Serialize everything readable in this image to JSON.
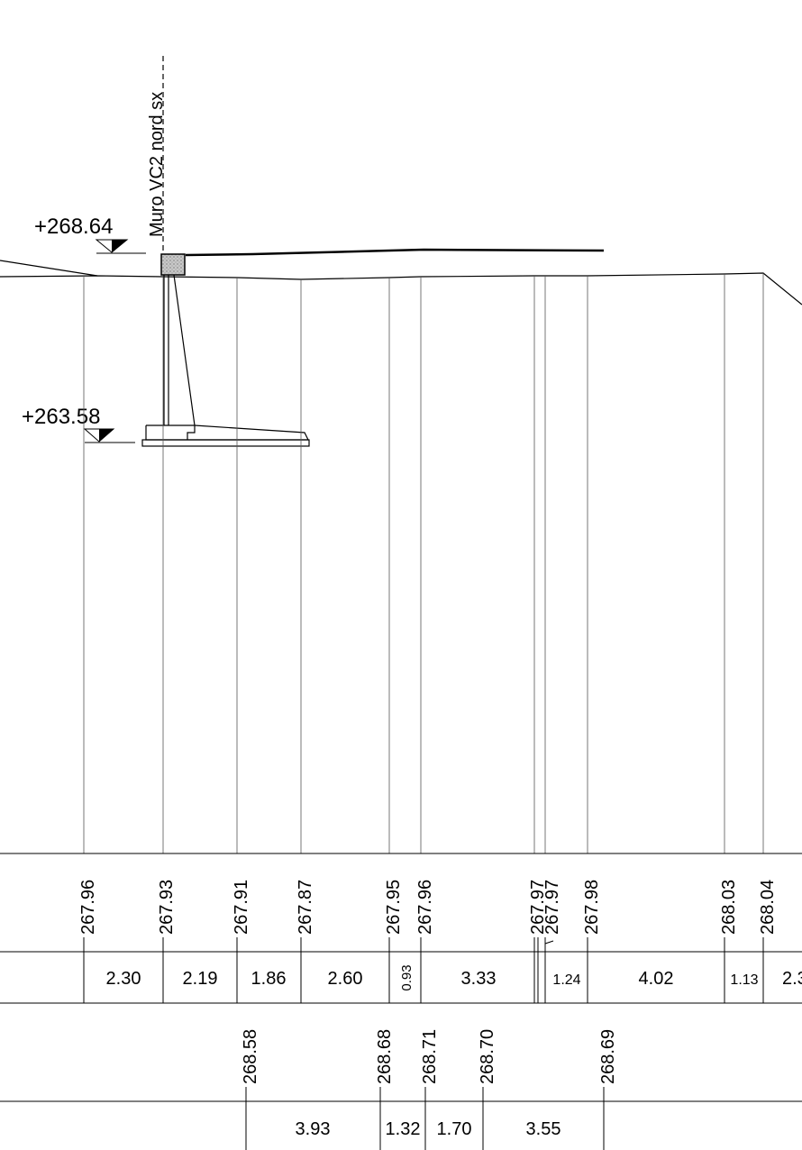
{
  "section_label": "Muro VC2 nord sx",
  "levels": {
    "top": "+268.64",
    "bottom": "+263.58"
  },
  "ground_elevations": [
    "267.96",
    "267.93",
    "267.91",
    "267.87",
    "267.95",
    "267.96",
    "267.97",
    "267.97",
    "267.98",
    "268.03",
    "268.04"
  ],
  "ground_distances": [
    "2.30",
    "2.19",
    "1.86",
    "2.60",
    "0.93",
    "3.33",
    "1.24",
    "4.02",
    "1.13",
    "2.3"
  ],
  "project_elevations": [
    "268.58",
    "268.68",
    "268.71",
    "268.70",
    "268.69"
  ],
  "project_distances": [
    "3.93",
    "1.32",
    "1.70",
    "3.55"
  ],
  "colors": {
    "line": "#000000",
    "thin_line": "#555555",
    "background": "#ffffff"
  }
}
